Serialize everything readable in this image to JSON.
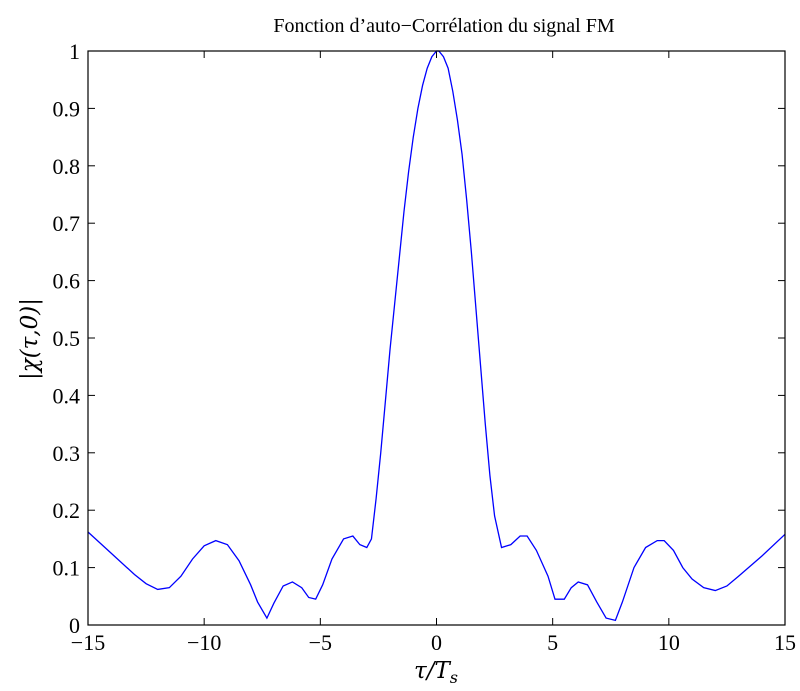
{
  "chart_data": {
    "type": "line",
    "title": "Fonction d’auto−Corrélation du signal FM",
    "xlabel": "τ/T_s",
    "ylabel": "|χ(τ,0)|",
    "xlim": [
      -15,
      15
    ],
    "ylim": [
      0,
      1
    ],
    "xticks": [
      -15,
      -10,
      -5,
      0,
      5,
      10,
      15
    ],
    "xtick_labels": [
      "−15",
      "−10",
      "−5",
      "0",
      "5",
      "10",
      "15"
    ],
    "yticks": [
      0,
      0.1,
      0.2,
      0.3,
      0.4,
      0.5,
      0.6,
      0.7,
      0.8,
      0.9,
      1
    ],
    "ytick_labels": [
      "0",
      "0.1",
      "0.2",
      "0.3",
      "0.4",
      "0.5",
      "0.6",
      "0.7",
      "0.8",
      "0.9",
      "1"
    ],
    "grid": false,
    "line_color": "#0000ff",
    "series": [
      {
        "x": [
          -15,
          -14,
          -13,
          -12.5,
          -12,
          -11.5,
          -11,
          -10.5,
          -10,
          -9.5,
          -9,
          -8.5,
          -8,
          -7.7,
          -7.3,
          -7,
          -6.6,
          -6.2,
          -5.8,
          -5.5,
          -5.2,
          -4.9,
          -4.5,
          -4,
          -3.6,
          -3.3,
          -3.0,
          -2.8,
          -2.6,
          -2.4,
          -2.2,
          -2.0,
          -1.8,
          -1.6,
          -1.4,
          -1.2,
          -1.0,
          -0.8,
          -0.6,
          -0.4,
          -0.2,
          0,
          0.1,
          0.3,
          0.5,
          0.7,
          0.9,
          1.1,
          1.3,
          1.5,
          1.7,
          1.9,
          2.1,
          2.3,
          2.5,
          2.8,
          3.2,
          3.6,
          3.9,
          4.3,
          4.8,
          5.1,
          5.5,
          5.8,
          6.1,
          6.5,
          6.9,
          7.3,
          7.7,
          8.0,
          8.5,
          9,
          9.5,
          9.8,
          10.2,
          10.6,
          11,
          11.5,
          12,
          12.5,
          13,
          14,
          15
        ],
        "y": [
          0.162,
          0.125,
          0.088,
          0.072,
          0.062,
          0.065,
          0.085,
          0.115,
          0.138,
          0.147,
          0.14,
          0.112,
          0.07,
          0.04,
          0.012,
          0.038,
          0.068,
          0.075,
          0.065,
          0.048,
          0.045,
          0.07,
          0.115,
          0.15,
          0.155,
          0.14,
          0.135,
          0.15,
          0.22,
          0.3,
          0.39,
          0.48,
          0.56,
          0.64,
          0.72,
          0.79,
          0.85,
          0.9,
          0.94,
          0.97,
          0.99,
          1.0,
          1.0,
          0.99,
          0.97,
          0.93,
          0.88,
          0.82,
          0.74,
          0.65,
          0.55,
          0.45,
          0.35,
          0.26,
          0.19,
          0.135,
          0.14,
          0.155,
          0.155,
          0.13,
          0.085,
          0.045,
          0.045,
          0.065,
          0.075,
          0.07,
          0.04,
          0.012,
          0.008,
          0.04,
          0.1,
          0.135,
          0.147,
          0.147,
          0.13,
          0.1,
          0.08,
          0.065,
          0.06,
          0.068,
          0.085,
          0.12,
          0.158
        ]
      }
    ]
  }
}
